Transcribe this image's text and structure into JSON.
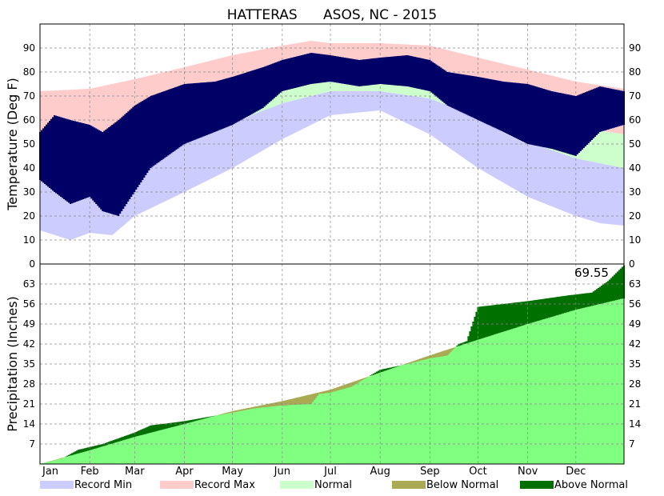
{
  "chart_data": [
    {
      "type": "bar",
      "title": "HATTERAS      ASOS, NC - 2015",
      "ylabel": "Temperature (Deg F)",
      "ylim": [
        0,
        100
      ],
      "yticks": [
        0,
        10,
        20,
        30,
        40,
        50,
        60,
        70,
        80,
        90
      ],
      "months": [
        "Jan",
        "Feb",
        "Mar",
        "Apr",
        "May",
        "Jun",
        "Jul",
        "Aug",
        "Sep",
        "Oct",
        "Nov",
        "Dec"
      ],
      "grid": true,
      "normal_high": {
        "x_day": [
          1,
          32,
          60,
          91,
          121,
          152,
          182,
          213,
          244,
          274,
          305,
          335,
          365
        ],
        "values": [
          53,
          54,
          58,
          65,
          72,
          79,
          83,
          83,
          79,
          72,
          64,
          57,
          54
        ]
      },
      "normal_low": {
        "x_day": [
          1,
          32,
          60,
          91,
          121,
          152,
          182,
          213,
          244,
          274,
          305,
          335,
          365
        ],
        "values": [
          40,
          40,
          44,
          51,
          59,
          67,
          72,
          72,
          69,
          61,
          51,
          44,
          40
        ]
      },
      "record_max": {
        "x_day": [
          1,
          32,
          60,
          91,
          121,
          152,
          170,
          182,
          213,
          244,
          274,
          305,
          335,
          365
        ],
        "values": [
          72,
          73,
          77,
          82,
          87,
          91,
          93,
          92,
          92,
          91,
          86,
          81,
          76,
          73
        ]
      },
      "record_min": {
        "x_day": [
          1,
          20,
          32,
          46,
          60,
          91,
          121,
          152,
          182,
          213,
          244,
          274,
          305,
          335,
          350,
          365
        ],
        "values": [
          14,
          10,
          13,
          12,
          20,
          30,
          40,
          52,
          62,
          64,
          54,
          40,
          28,
          20,
          17,
          16
        ]
      },
      "observed_high": {
        "x_day": [
          1,
          10,
          20,
          32,
          40,
          50,
          60,
          70,
          91,
          110,
          121,
          140,
          152,
          170,
          182,
          200,
          213,
          230,
          244,
          255,
          274,
          290,
          305,
          320,
          335,
          350,
          365
        ],
        "values": [
          55,
          62,
          60,
          58,
          55,
          60,
          66,
          70,
          75,
          76,
          78,
          82,
          85,
          88,
          87,
          85,
          86,
          87,
          85,
          80,
          78,
          76,
          75,
          72,
          70,
          74,
          72
        ]
      },
      "observed_low": {
        "x_day": [
          1,
          10,
          20,
          32,
          40,
          50,
          60,
          70,
          91,
          110,
          121,
          140,
          152,
          170,
          182,
          200,
          213,
          230,
          244,
          255,
          274,
          290,
          305,
          320,
          335,
          350,
          365
        ],
        "values": [
          35,
          30,
          25,
          28,
          22,
          20,
          30,
          40,
          50,
          55,
          58,
          65,
          72,
          75,
          76,
          74,
          75,
          74,
          72,
          66,
          60,
          55,
          50,
          48,
          45,
          55,
          58
        ]
      },
      "legend": [
        {
          "label": "Record Min",
          "color": "#ccccff"
        },
        {
          "label": "Record Max",
          "color": "#ffcccc"
        },
        {
          "label": "Normal",
          "color": "#ccffcc"
        },
        {
          "label": "Below Normal",
          "color": "#aaaa55"
        },
        {
          "label": "Above Normal",
          "color": "#007000"
        }
      ],
      "colors": {
        "observed": "#000066",
        "record_min": "#ccccff",
        "record_max": "#ffcccc",
        "normal": "#ccffcc"
      }
    },
    {
      "type": "area",
      "ylabel": "Precipitation (Inches)",
      "ylim": [
        0,
        70
      ],
      "yticks": [
        7,
        14,
        21,
        28,
        35,
        42,
        49,
        56,
        63
      ],
      "annotation": "69.55",
      "grid": true,
      "normal_cumulative": {
        "x_day": [
          1,
          32,
          60,
          91,
          121,
          152,
          182,
          213,
          244,
          274,
          305,
          335,
          365
        ],
        "values": [
          0,
          4.8,
          9.5,
          14.0,
          18.5,
          22.0,
          26.0,
          32.0,
          38.0,
          43.5,
          49.0,
          54.0,
          58.0
        ]
      },
      "observed_cumulative": {
        "x_day": [
          1,
          15,
          25,
          40,
          50,
          60,
          70,
          91,
          121,
          135,
          152,
          170,
          175,
          182,
          195,
          213,
          230,
          244,
          250,
          255,
          262,
          267,
          274,
          305,
          330,
          345,
          355,
          365
        ],
        "values": [
          0,
          2.0,
          5.0,
          7.0,
          9.0,
          11.0,
          13.5,
          15.0,
          18.0,
          19.5,
          20.5,
          21.0,
          24.5,
          25.0,
          27.0,
          33.0,
          35.0,
          37.0,
          37.5,
          38.0,
          42.0,
          43.0,
          55.0,
          57.0,
          59.0,
          60.0,
          64.0,
          69.55
        ]
      },
      "colors": {
        "normal": "#80ff80",
        "below": "#aaaa55",
        "above": "#007000"
      }
    }
  ]
}
